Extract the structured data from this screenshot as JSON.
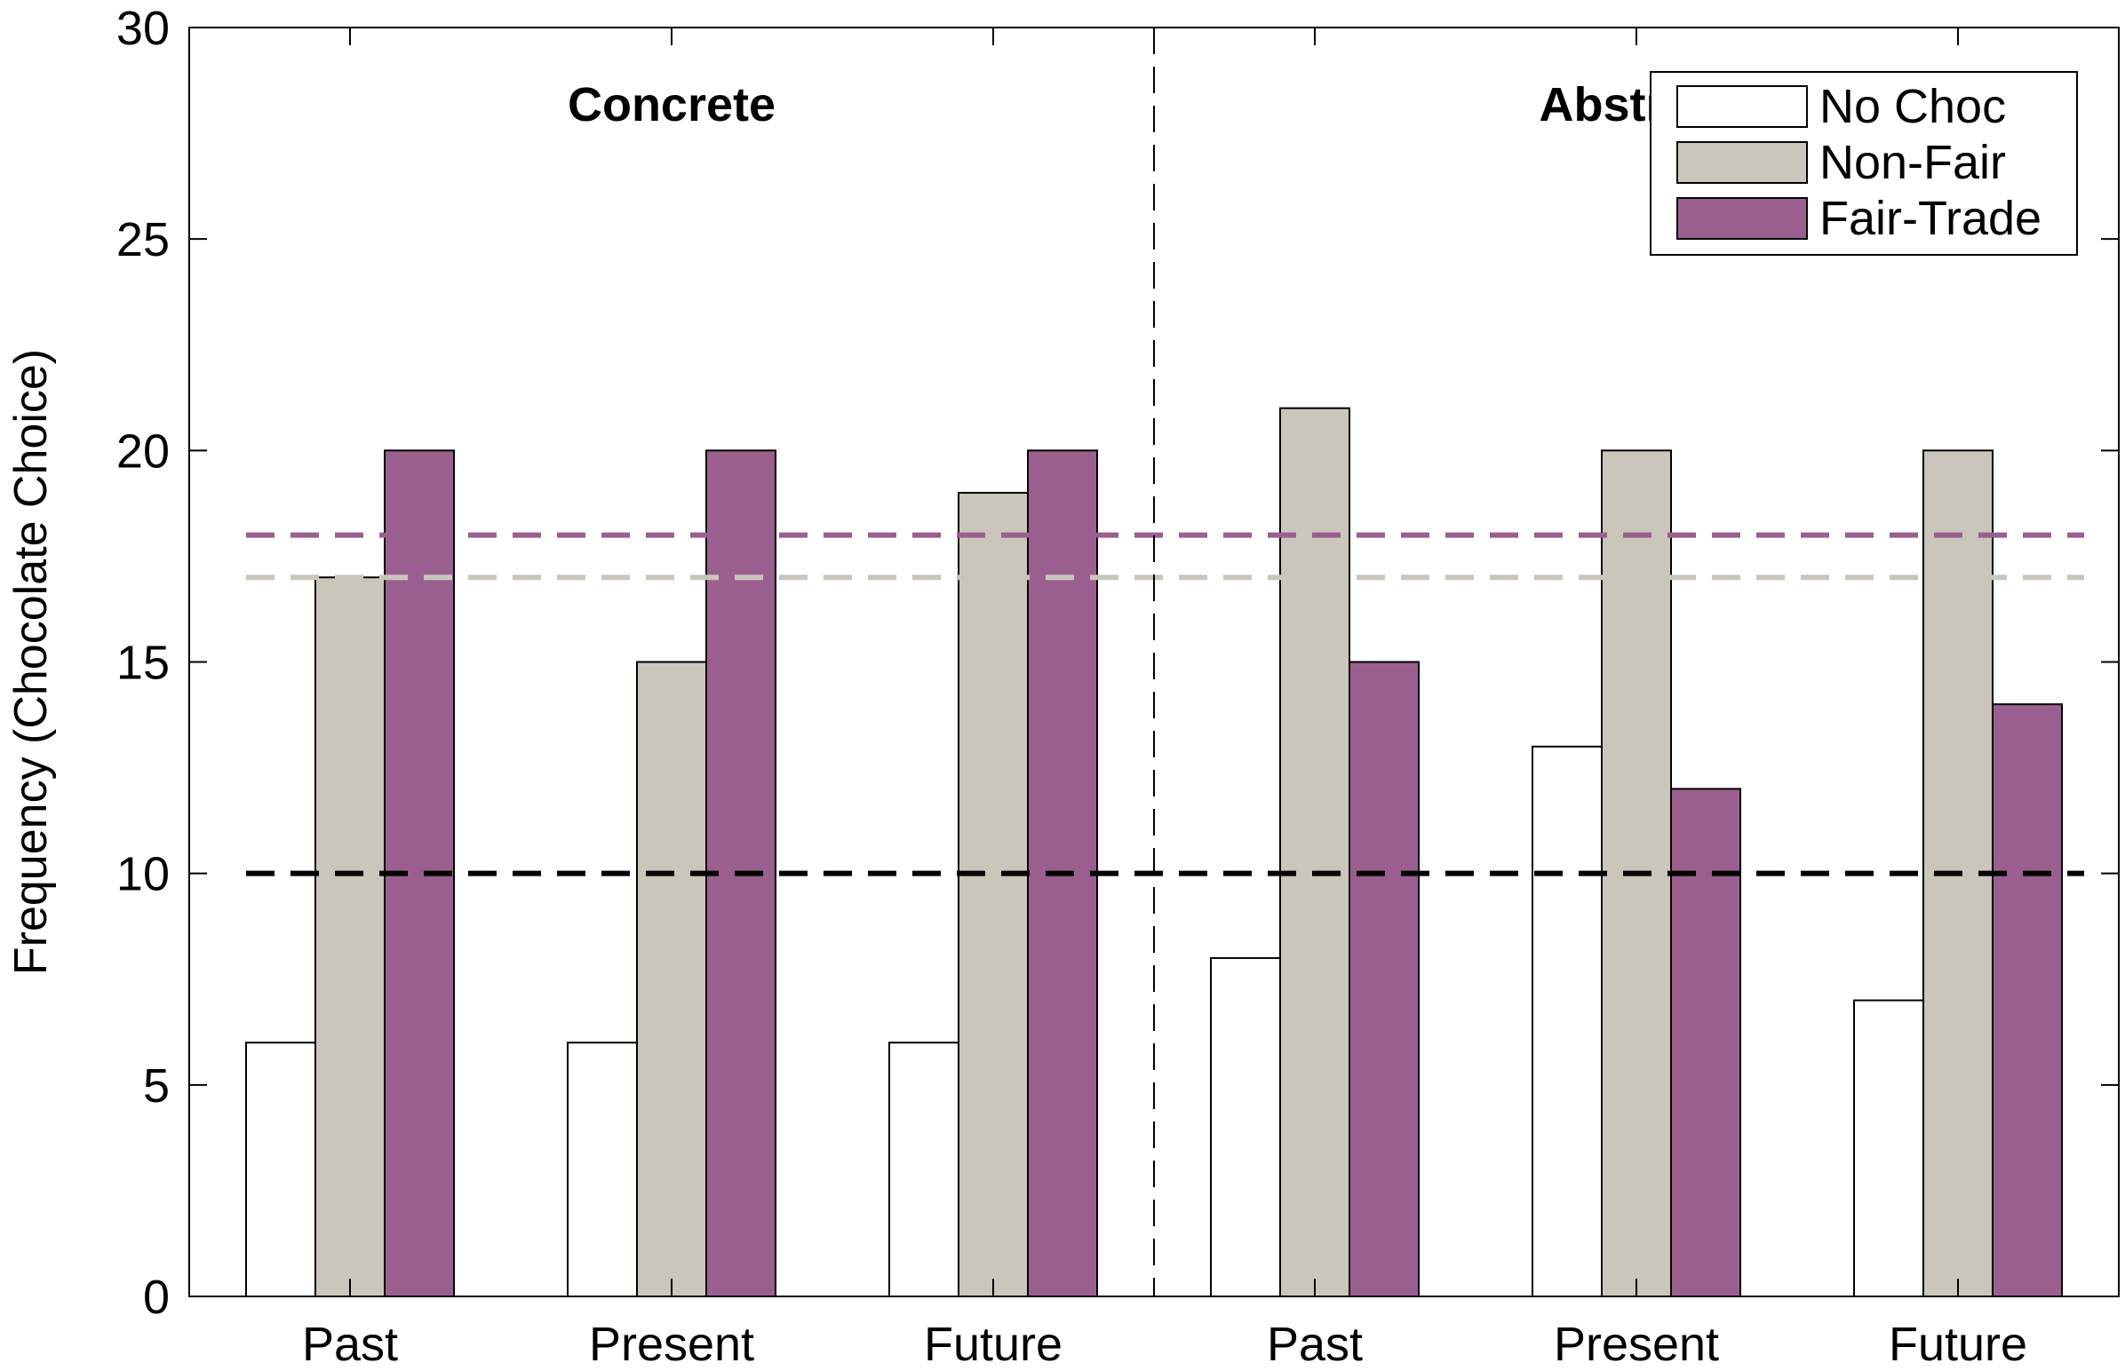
{
  "chart_data": {
    "type": "bar",
    "ylabel": "Frequency (Chocolate Choice)",
    "ylim": [
      0,
      30
    ],
    "yticks": [
      0,
      5,
      10,
      15,
      20,
      25,
      30
    ],
    "categories": [
      "Past",
      "Present",
      "Future",
      "Past",
      "Present",
      "Future"
    ],
    "groups": [
      {
        "label": "Concrete",
        "categories": [
          0,
          1,
          2
        ]
      },
      {
        "label": "Abstract",
        "categories": [
          3,
          4,
          5
        ]
      }
    ],
    "series": [
      {
        "name": "No Choc",
        "color": "#ffffff",
        "values": [
          6,
          6,
          6,
          8,
          13,
          7
        ]
      },
      {
        "name": "Non-Fair",
        "color": "#cbc6bb",
        "values": [
          17,
          15,
          19,
          21,
          20,
          20
        ]
      },
      {
        "name": "Fair-Trade",
        "color": "#9b5f8f",
        "values": [
          20,
          20,
          20,
          15,
          12,
          14
        ]
      }
    ],
    "reference_lines": [
      {
        "y": 18,
        "color": "#9b5f8f",
        "style": "dashed"
      },
      {
        "y": 17,
        "color": "#cbc6bb",
        "style": "dashed"
      },
      {
        "y": 10,
        "color": "#000000",
        "style": "dashed"
      }
    ],
    "legend": "top-right",
    "grid": false
  }
}
